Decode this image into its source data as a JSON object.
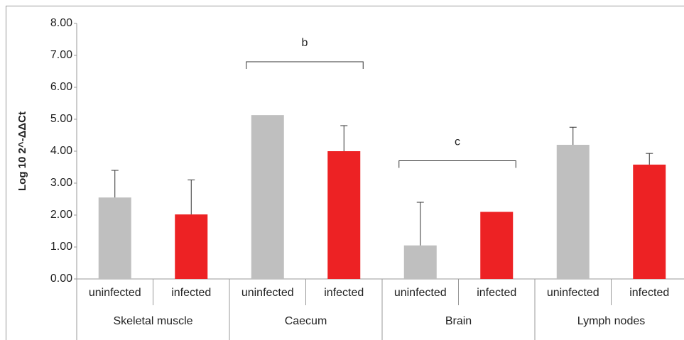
{
  "chart_data": {
    "type": "bar",
    "y_label": "Log 10 2^-ΔΔCt",
    "categories": [
      "uninfected",
      "infected",
      "uninfected",
      "infected",
      "uninfected",
      "infected",
      "uninfected",
      "infected"
    ],
    "groups": [
      "Skeletal muscle",
      "Caecum",
      "Brain",
      "Lymph nodes"
    ],
    "values": [
      2.55,
      2.02,
      5.13,
      4.0,
      1.05,
      2.1,
      4.2,
      3.58
    ],
    "errors": [
      0.85,
      1.08,
      null,
      0.8,
      1.35,
      null,
      0.55,
      0.35
    ],
    "colors": [
      "#bfbfbf",
      "#ed2224",
      "#bfbfbf",
      "#ed2224",
      "#bfbfbf",
      "#ed2224",
      "#bfbfbf",
      "#ed2224"
    ],
    "ylim": [
      0,
      8
    ],
    "yticks": [
      {
        "value": 0,
        "label": "0.00"
      },
      {
        "value": 1,
        "label": "1.00"
      },
      {
        "value": 2,
        "label": "2.00"
      },
      {
        "value": 3,
        "label": "3.00"
      },
      {
        "value": 4,
        "label": "4.00"
      },
      {
        "value": 5,
        "label": "5.00"
      },
      {
        "value": 6,
        "label": "6.00"
      },
      {
        "value": 7,
        "label": "7.00"
      },
      {
        "value": 8,
        "label": "8.00"
      }
    ],
    "grid": false,
    "annotations": [
      {
        "text": "b",
        "from": 2,
        "to": 3,
        "y": 6.8
      },
      {
        "text": "c",
        "from": 4,
        "to": 5,
        "y": 3.7
      }
    ]
  }
}
